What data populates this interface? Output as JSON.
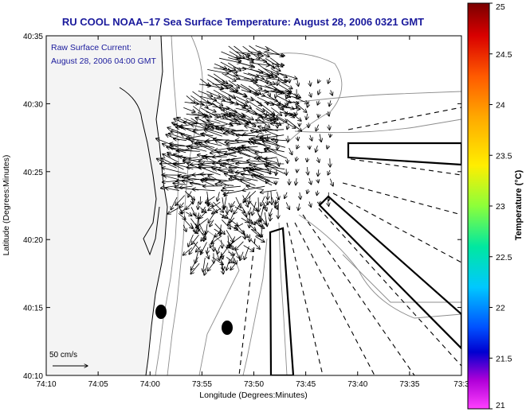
{
  "title": "RU COOL  NOAA–17  Sea Surface Temperature:  August 28, 2006 0321 GMT",
  "annotation": {
    "line1": "Raw Surface Current:",
    "line2": "August 28, 2006 04:00 GMT"
  },
  "scale": {
    "label": "50 cm/s"
  },
  "axes": {
    "xlabel": "Longitude (Degrees:Minutes)",
    "ylabel": "Latitude (Degrees:Minutes)",
    "x_ticks": [
      "74:10",
      "74:05",
      "74:00",
      "73:55",
      "73:50",
      "73:45",
      "73:40",
      "73:35",
      "73:3"
    ],
    "y_ticks": [
      "40:35",
      "40:30",
      "40:25",
      "40:20",
      "40:15",
      "40:10"
    ]
  },
  "colorbar": {
    "label": "Temperature (°C)",
    "ticks": [
      "25",
      "24.5",
      "24",
      "23.5",
      "23",
      "22.5",
      "22",
      "21.5",
      "21"
    ],
    "min": 21,
    "max": 25
  },
  "colors": {
    "title": "#1a1a9c",
    "land": "#f4f4f4",
    "bathymetry": "#8c8c8c"
  }
}
